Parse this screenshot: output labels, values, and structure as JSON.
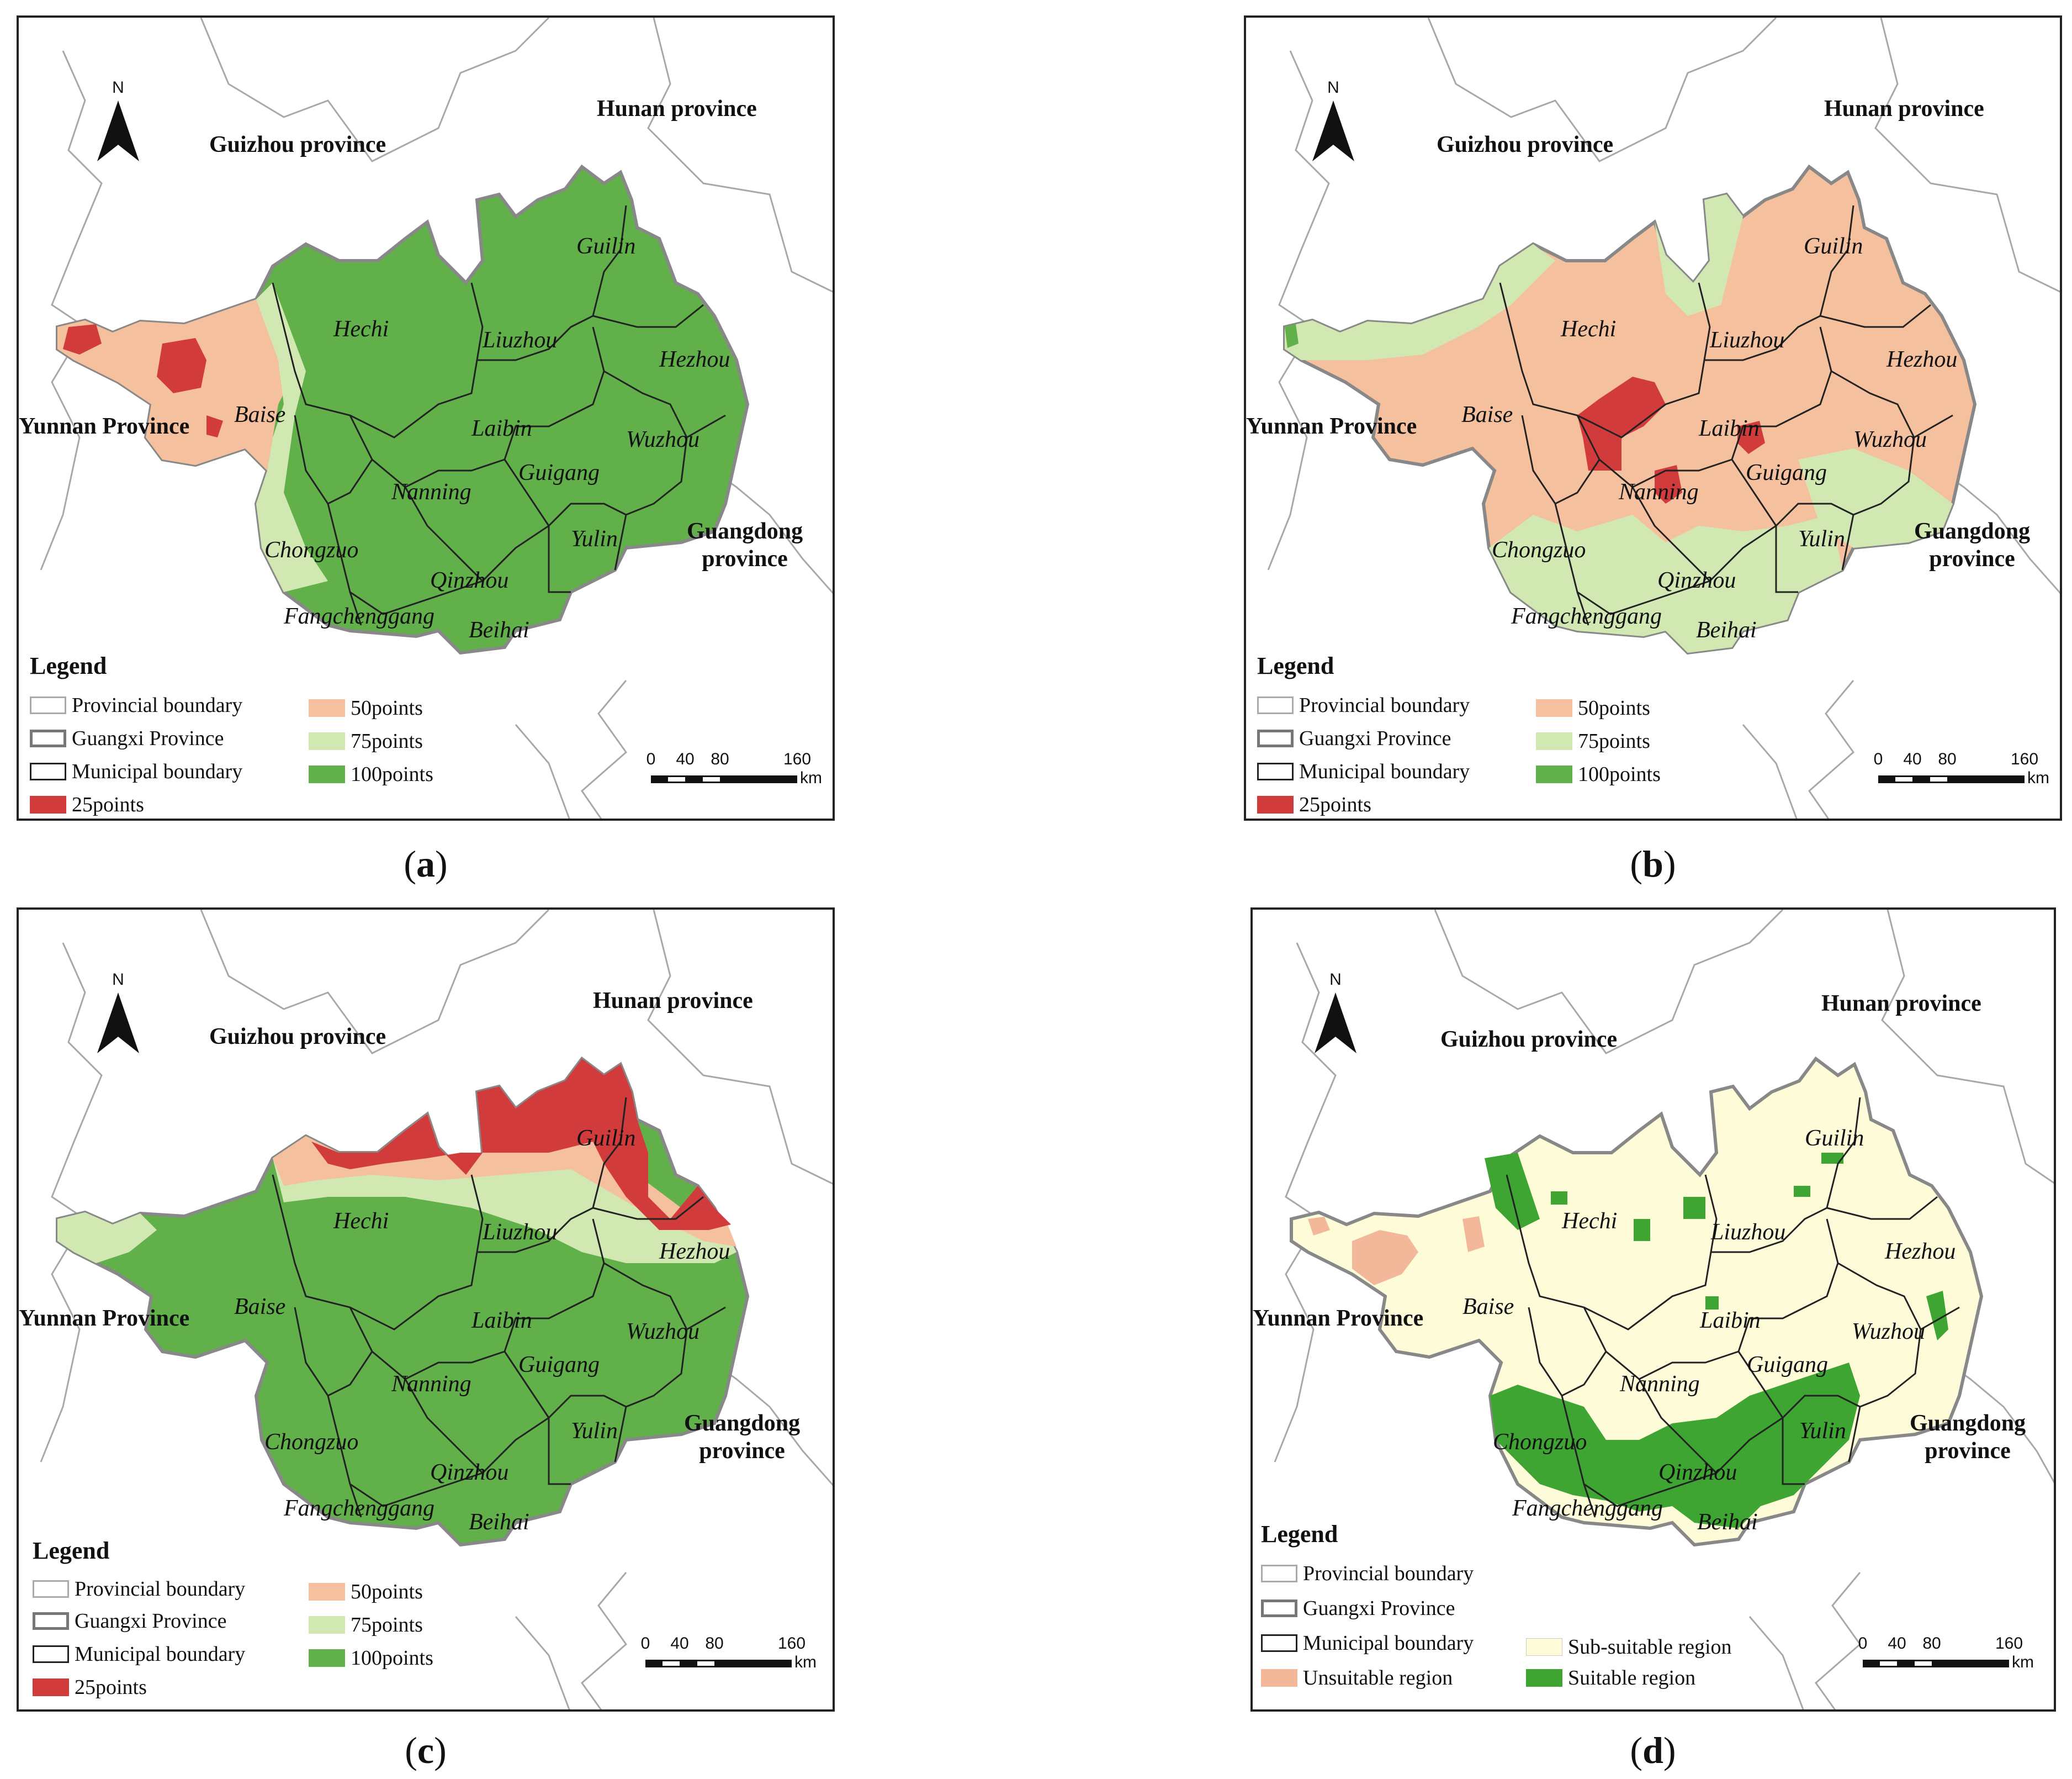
{
  "colors": {
    "points_25": "#d23b3b",
    "points_50": "#f5c09d",
    "points_75": "#d2e8b3",
    "points_100": "#62b04a",
    "unsuitable": "#f3b79a",
    "sub_suitable": "#fdfbd8",
    "suitable": "#3fa532",
    "boundary_gray": "#999999"
  },
  "north_letter": "N",
  "provinces": {
    "guizhou": "Guizhou province",
    "hunan": "Hunan province",
    "yunnan": "Yunnan Province",
    "guangdong_line1": "Guangdong",
    "guangdong_line2": "province"
  },
  "cities": [
    "Guilin",
    "Hechi",
    "Liuzhou",
    "Hezhou",
    "Baise",
    "Laibin",
    "Wuzhou",
    "Guigang",
    "Nanning",
    "Chongzuo",
    "Yulin",
    "Qinzhou",
    "Fangchenggang",
    "Beihai"
  ],
  "legend": {
    "title": "Legend",
    "provincial_boundary": "Provincial boundary",
    "guangxi_province": "Guangxi Province",
    "municipal_boundary": "Municipal boundary",
    "points_25": "25points",
    "points_50": "50points",
    "points_75": "75points",
    "points_100": "100points",
    "unsuitable": "Unsuitable region",
    "sub_suitable": "Sub-suitable region",
    "suitable": "Suitable region"
  },
  "scale": {
    "ticks": [
      "0",
      "40",
      "80",
      "160"
    ],
    "unit": "km"
  },
  "panels": [
    {
      "id": "a",
      "caption_letter": "a",
      "map_type": "score",
      "base": "points_100"
    },
    {
      "id": "b",
      "caption_letter": "b",
      "map_type": "score",
      "base": "points_50"
    },
    {
      "id": "c",
      "caption_letter": "c",
      "map_type": "score",
      "base": "points_100"
    },
    {
      "id": "d",
      "caption_letter": "d",
      "map_type": "suitability",
      "base": "sub_suitable"
    }
  ]
}
